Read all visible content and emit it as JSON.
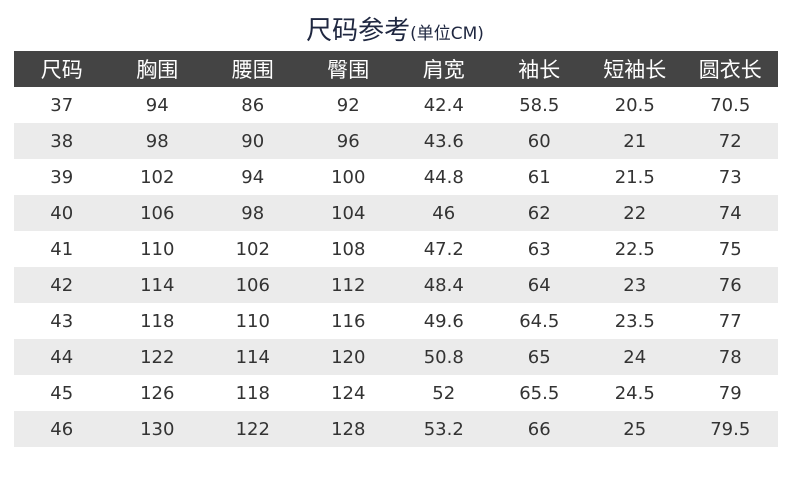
{
  "title": {
    "main": "尺码参考",
    "unit": "(单位CM)"
  },
  "colors": {
    "header_bg": "#444444",
    "alt_row_bg": "#ebebeb",
    "title": "#1f2740"
  },
  "headers": [
    "尺码",
    "胸围",
    "腰围",
    "臀围",
    "肩宽",
    "袖长",
    "短袖长",
    "圆衣长"
  ],
  "rows": [
    [
      "37",
      "94",
      "86",
      "92",
      "42.4",
      "58.5",
      "20.5",
      "70.5"
    ],
    [
      "38",
      "98",
      "90",
      "96",
      "43.6",
      "60",
      "21",
      "72"
    ],
    [
      "39",
      "102",
      "94",
      "100",
      "44.8",
      "61",
      "21.5",
      "73"
    ],
    [
      "40",
      "106",
      "98",
      "104",
      "46",
      "62",
      "22",
      "74"
    ],
    [
      "41",
      "110",
      "102",
      "108",
      "47.2",
      "63",
      "22.5",
      "75"
    ],
    [
      "42",
      "114",
      "106",
      "112",
      "48.4",
      "64",
      "23",
      "76"
    ],
    [
      "43",
      "118",
      "110",
      "116",
      "49.6",
      "64.5",
      "23.5",
      "77"
    ],
    [
      "44",
      "122",
      "114",
      "120",
      "50.8",
      "65",
      "24",
      "78"
    ],
    [
      "45",
      "126",
      "118",
      "124",
      "52",
      "65.5",
      "24.5",
      "79"
    ],
    [
      "46",
      "130",
      "122",
      "128",
      "53.2",
      "66",
      "25",
      "79.5"
    ]
  ]
}
